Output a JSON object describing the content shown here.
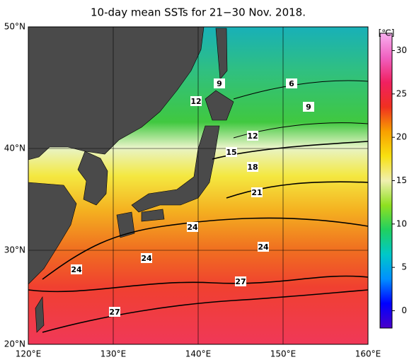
{
  "title": "10-day mean SSTs for 21−30 Nov. 2018.",
  "map": {
    "x_labels": [
      "120°E",
      "130°E",
      "140°E",
      "150°E",
      "160°E"
    ],
    "y_labels": [
      "50°N",
      "40°N",
      "30°N",
      "20°N"
    ],
    "contour_labels": [
      9,
      6,
      12,
      9,
      12,
      15,
      18,
      21,
      24,
      24,
      24,
      24,
      27,
      27
    ]
  },
  "colorbar": {
    "unit": "[℃]",
    "range": [
      -2,
      32
    ],
    "ticks": [
      0,
      5,
      10,
      15,
      20,
      25,
      30
    ],
    "colors": [
      "#4a00c8",
      "#0000ff",
      "#0090ff",
      "#00c8c8",
      "#20d060",
      "#90e020",
      "#f0f0b0",
      "#f8e010",
      "#f8a000",
      "#f03020",
      "#f02060",
      "#f060c0",
      "#f8b0f0"
    ]
  }
}
